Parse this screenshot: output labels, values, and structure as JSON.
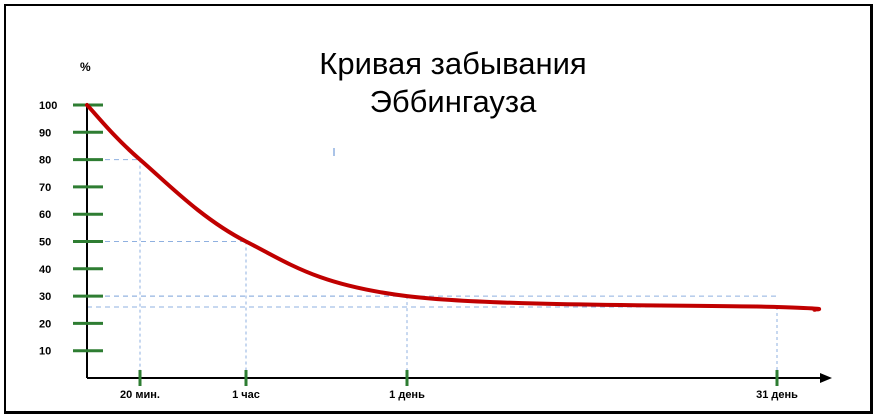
{
  "chart_data": {
    "type": "line",
    "title_line1": "Кривая забывания",
    "title_line2": "Эббингауза",
    "y_unit": "%",
    "y_ticks": [
      10,
      20,
      30,
      40,
      50,
      60,
      70,
      80,
      90,
      100
    ],
    "ylim": [
      0,
      100
    ],
    "x_ticks": [
      {
        "label": "20 мин.",
        "index": 1
      },
      {
        "label": "1 час",
        "index": 2
      },
      {
        "label": "1 день",
        "index": 3
      },
      {
        "label": "31 день",
        "index": 4
      }
    ],
    "series": [
      {
        "color": "#c00000",
        "points": [
          {
            "x": 0,
            "y": 100
          },
          {
            "x": 1,
            "y": 80
          },
          {
            "x": 2,
            "y": 50
          },
          {
            "x": 3,
            "y": 30
          },
          {
            "x": 4,
            "y": 26
          },
          {
            "x": 4.2,
            "y": 25
          }
        ]
      }
    ],
    "reference_lines": [
      {
        "x": 1,
        "y": 80
      },
      {
        "x": 2,
        "y": 50
      },
      {
        "x": 3,
        "y": 30
      },
      {
        "x": 4,
        "y": 26
      }
    ],
    "colors": {
      "axis": "#000000",
      "tick": "#2e7d32",
      "curve": "#c00000",
      "guide": "#8fb0e0"
    },
    "grid": false
  }
}
